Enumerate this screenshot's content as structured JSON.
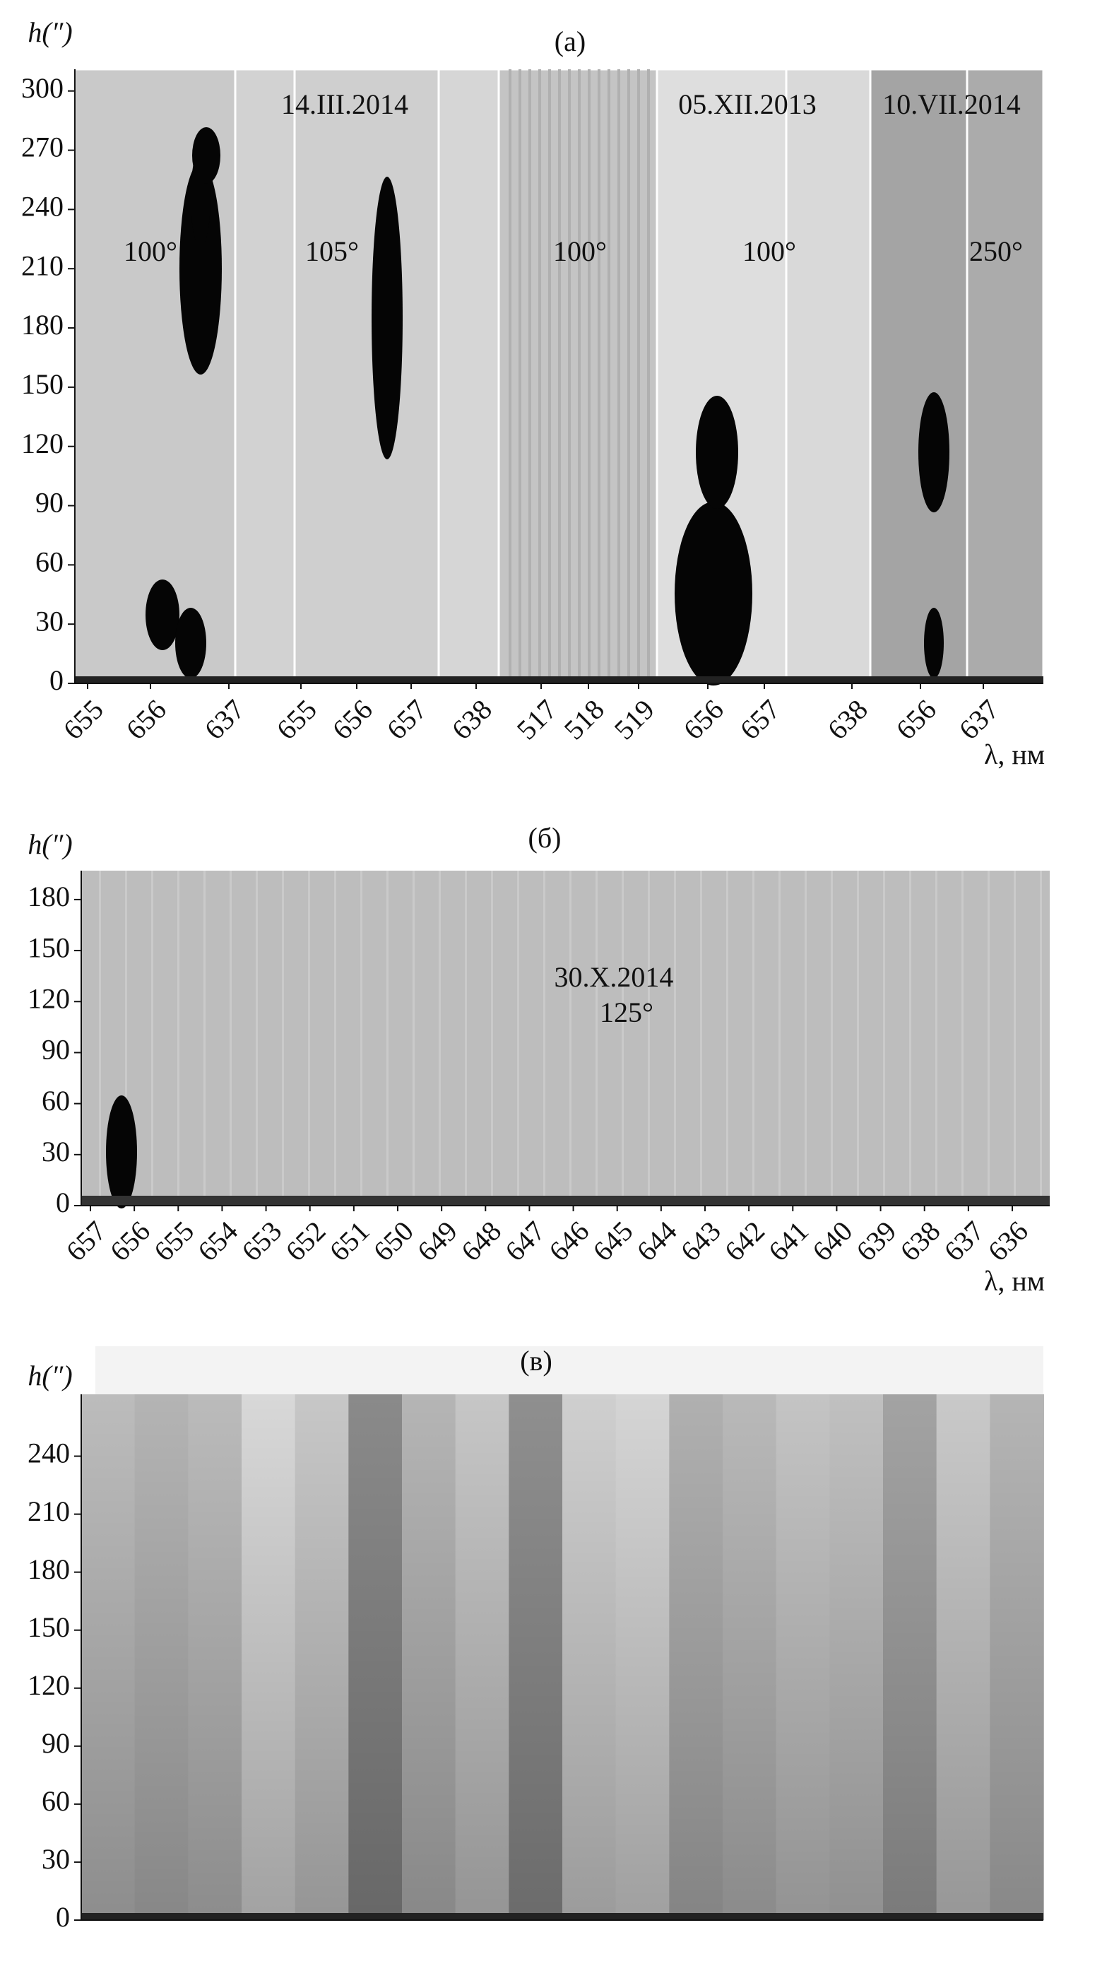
{
  "chart_data": [
    {
      "type": "spectrogram",
      "title": "(a)",
      "y_label": "h(″)",
      "x_label": "λ, нм",
      "ylim": [
        0,
        311
      ],
      "yticks": [
        0,
        30,
        60,
        90,
        120,
        150,
        180,
        210,
        240,
        270,
        300
      ],
      "categories": [
        "655",
        "656",
        "637",
        "655",
        "656",
        "657",
        "638",
        "517",
        "518",
        "519",
        "656",
        "657",
        "638",
        "656",
        "637"
      ],
      "annotations": [
        "14.III.2014",
        "05.XII.2013",
        "10.VII.2014",
        "100°",
        "105°",
        "100°",
        "100°",
        "250°"
      ]
    },
    {
      "type": "spectrogram",
      "title": "(б)",
      "y_label": "h(″)",
      "x_label": "λ, нм",
      "ylim": [
        0,
        197
      ],
      "yticks": [
        0,
        30,
        60,
        90,
        120,
        150,
        180
      ],
      "categories": [
        "657",
        "656",
        "655",
        "654",
        "653",
        "652",
        "651",
        "650",
        "649",
        "648",
        "647",
        "646",
        "645",
        "644",
        "643",
        "642",
        "641",
        "640",
        "639",
        "638",
        "637",
        "636"
      ],
      "annotations": [
        "30.X.2014",
        "125°"
      ]
    },
    {
      "type": "spectrogram",
      "title": "(в)",
      "y_label": "h(″)",
      "ylim": [
        0,
        272
      ],
      "yticks": [
        0,
        30,
        60,
        90,
        120,
        150,
        180,
        210,
        240
      ]
    }
  ]
}
